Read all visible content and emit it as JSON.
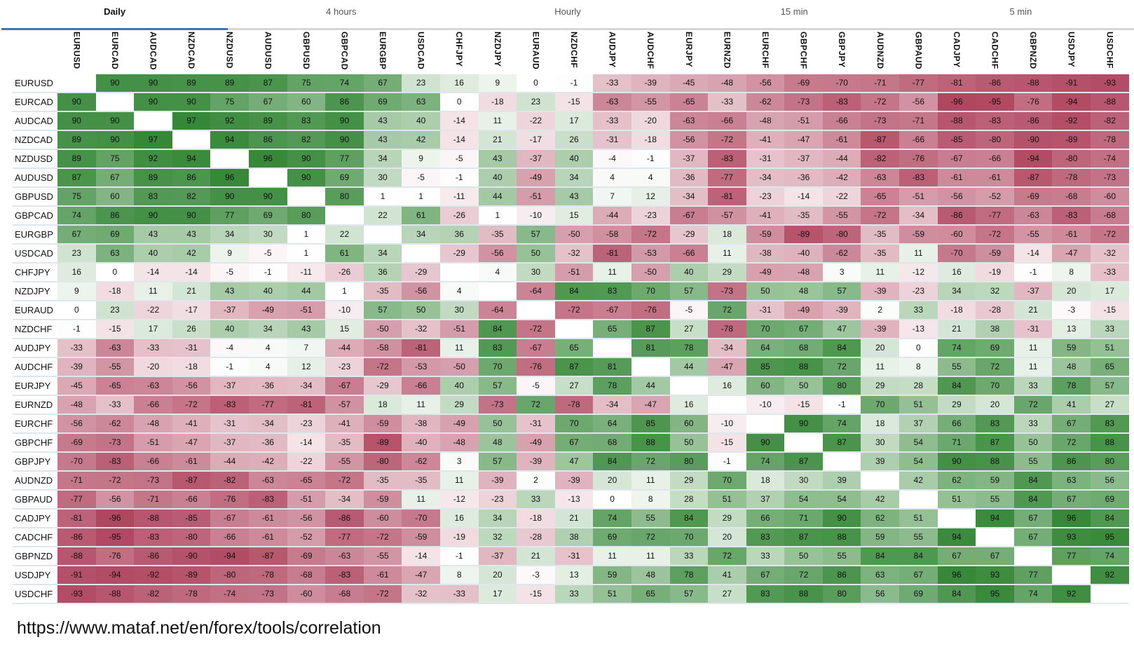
{
  "tabs": [
    {
      "label": "Daily",
      "active": true
    },
    {
      "label": "4 hours"
    },
    {
      "label": "Hourly"
    },
    {
      "label": "15 min"
    },
    {
      "label": "5 min"
    }
  ],
  "pairs": [
    "EURUSD",
    "EURCAD",
    "AUDCAD",
    "NZDCAD",
    "NZDUSD",
    "AUDUSD",
    "GBPUSD",
    "GBPCAD",
    "EURGBP",
    "USDCAD",
    "CHFJPY",
    "NZDJPY",
    "EURAUD",
    "NZDCHF",
    "AUDJPY",
    "AUDCHF",
    "EURJPY",
    "EURNZD",
    "EURCHF",
    "GBPCHF",
    "GBPJPY",
    "AUDNZD",
    "GBPAUD",
    "CADJPY",
    "CADCHF",
    "GBPNZD",
    "USDJPY",
    "USDCHF"
  ],
  "colors": {
    "positive": "#2f8431",
    "negative": "#ad3f5a",
    "neutral": "#ffffff"
  },
  "matrix": [
    [
      null,
      90,
      90,
      89,
      89,
      87,
      75,
      74,
      67,
      23,
      16,
      9,
      0,
      -1,
      -33,
      -39,
      -45,
      -48,
      -56,
      -69,
      -70,
      -71,
      -77,
      -81,
      -86,
      -88,
      -91,
      -93
    ],
    [
      90,
      null,
      90,
      90,
      75,
      67,
      60,
      86,
      69,
      63,
      0,
      -18,
      23,
      -15,
      -63,
      -55,
      -65,
      -33,
      -62,
      -73,
      -83,
      -72,
      -56,
      -96,
      -95,
      -76,
      -94,
      -88
    ],
    [
      90,
      90,
      null,
      97,
      92,
      89,
      83,
      90,
      43,
      40,
      -14,
      11,
      -22,
      17,
      -33,
      -20,
      -63,
      -66,
      -48,
      -51,
      -66,
      -73,
      -71,
      -88,
      -83,
      -86,
      -92,
      -82
    ],
    [
      89,
      90,
      97,
      null,
      94,
      86,
      82,
      90,
      43,
      42,
      -14,
      21,
      -17,
      26,
      -31,
      -18,
      -56,
      -72,
      -41,
      -47,
      -61,
      -87,
      -66,
      -85,
      -80,
      -90,
      -89,
      -78
    ],
    [
      89,
      75,
      92,
      94,
      null,
      96,
      90,
      77,
      34,
      9,
      -5,
      43,
      -37,
      40,
      -4,
      -1,
      -37,
      -83,
      -31,
      -37,
      -44,
      -82,
      -76,
      -67,
      -66,
      -94,
      -80,
      -74
    ],
    [
      87,
      67,
      89,
      86,
      96,
      null,
      90,
      69,
      30,
      -5,
      -1,
      40,
      -49,
      34,
      4,
      4,
      -36,
      -77,
      -34,
      -36,
      -42,
      -63,
      -83,
      -61,
      -61,
      -87,
      -78,
      -73
    ],
    [
      75,
      60,
      83,
      82,
      90,
      90,
      null,
      80,
      1,
      1,
      -11,
      44,
      -51,
      43,
      7,
      12,
      -34,
      -81,
      -23,
      -14,
      -22,
      -65,
      -51,
      -56,
      -52,
      -69,
      -68,
      -60
    ],
    [
      74,
      86,
      90,
      90,
      77,
      69,
      80,
      null,
      22,
      61,
      -26,
      1,
      -10,
      15,
      -44,
      -23,
      -67,
      -57,
      -41,
      -35,
      -55,
      -72,
      -34,
      -86,
      -77,
      -63,
      -83,
      -68
    ],
    [
      67,
      69,
      43,
      43,
      34,
      30,
      1,
      22,
      null,
      34,
      36,
      -35,
      57,
      -50,
      -58,
      -72,
      -29,
      18,
      -59,
      -89,
      -80,
      -35,
      -59,
      -60,
      -72,
      -55,
      -61,
      -72
    ],
    [
      23,
      63,
      40,
      42,
      9,
      -5,
      1,
      61,
      34,
      null,
      -29,
      -56,
      50,
      -32,
      -81,
      -53,
      -66,
      11,
      -38,
      -40,
      -62,
      -35,
      11,
      -70,
      -59,
      -14,
      -47,
      -32
    ],
    [
      16,
      0,
      -14,
      -14,
      -5,
      -1,
      -11,
      -26,
      36,
      -29,
      null,
      4,
      30,
      -51,
      11,
      -50,
      40,
      29,
      -49,
      -48,
      3,
      11,
      -12,
      16,
      -19,
      -1,
      8,
      -33
    ],
    [
      9,
      -18,
      11,
      21,
      43,
      40,
      44,
      1,
      -35,
      -56,
      4,
      null,
      -64,
      84,
      83,
      70,
      57,
      -73,
      50,
      48,
      57,
      -39,
      -23,
      34,
      32,
      -37,
      20,
      17
    ],
    [
      0,
      23,
      -22,
      -17,
      -37,
      -49,
      -51,
      -10,
      57,
      50,
      30,
      -64,
      null,
      -72,
      -67,
      -76,
      -5,
      72,
      -31,
      -49,
      -39,
      2,
      33,
      -18,
      -28,
      21,
      -3,
      -15
    ],
    [
      -1,
      -15,
      17,
      26,
      40,
      34,
      43,
      15,
      -50,
      -32,
      -51,
      84,
      -72,
      null,
      65,
      87,
      27,
      -78,
      70,
      67,
      47,
      -39,
      -13,
      21,
      38,
      -31,
      13,
      33
    ],
    [
      -33,
      -63,
      -33,
      -31,
      -4,
      4,
      7,
      -44,
      -58,
      -81,
      11,
      83,
      -67,
      65,
      null,
      81,
      78,
      -34,
      64,
      68,
      84,
      20,
      0,
      74,
      69,
      11,
      59,
      51
    ],
    [
      -39,
      -55,
      -20,
      -18,
      -1,
      4,
      12,
      -23,
      -72,
      -53,
      -50,
      70,
      -76,
      87,
      81,
      null,
      44,
      -47,
      85,
      88,
      72,
      11,
      8,
      55,
      72,
      11,
      48,
      65
    ],
    [
      -45,
      -65,
      -63,
      -56,
      -37,
      -36,
      -34,
      -67,
      -29,
      -66,
      40,
      57,
      -5,
      27,
      78,
      44,
      null,
      16,
      60,
      50,
      80,
      29,
      28,
      84,
      70,
      33,
      78,
      57
    ],
    [
      -48,
      -33,
      -66,
      -72,
      -83,
      -77,
      -81,
      -57,
      18,
      11,
      29,
      -73,
      72,
      -78,
      -34,
      -47,
      16,
      null,
      -10,
      -15,
      -1,
      70,
      51,
      29,
      20,
      72,
      41,
      27
    ],
    [
      -56,
      -62,
      -48,
      -41,
      -31,
      -34,
      -23,
      -41,
      -59,
      -38,
      -49,
      50,
      -31,
      70,
      64,
      85,
      60,
      -10,
      null,
      90,
      74,
      18,
      37,
      66,
      83,
      33,
      67,
      83
    ],
    [
      -69,
      -73,
      -51,
      -47,
      -37,
      -36,
      -14,
      -35,
      -89,
      -40,
      -48,
      48,
      -49,
      67,
      68,
      88,
      50,
      -15,
      90,
      null,
      87,
      30,
      54,
      71,
      87,
      50,
      72,
      88
    ],
    [
      -70,
      -83,
      -66,
      -61,
      -44,
      -42,
      -22,
      -55,
      -80,
      -62,
      3,
      57,
      -39,
      47,
      84,
      72,
      80,
      -1,
      74,
      87,
      null,
      39,
      54,
      90,
      88,
      55,
      86,
      80
    ],
    [
      -71,
      -72,
      -73,
      -87,
      -82,
      -63,
      -65,
      -72,
      -35,
      -35,
      11,
      -39,
      2,
      -39,
      20,
      11,
      29,
      70,
      18,
      30,
      39,
      null,
      42,
      62,
      59,
      84,
      63,
      56
    ],
    [
      -77,
      -56,
      -71,
      -66,
      -76,
      -83,
      -51,
      -34,
      -59,
      11,
      -12,
      -23,
      33,
      -13,
      0,
      8,
      28,
      51,
      37,
      54,
      54,
      42,
      null,
      51,
      55,
      84,
      67,
      69
    ],
    [
      -81,
      -96,
      -88,
      -85,
      -67,
      -61,
      -56,
      -86,
      -60,
      -70,
      16,
      34,
      -18,
      21,
      74,
      55,
      84,
      29,
      66,
      71,
      90,
      62,
      51,
      null,
      94,
      67,
      96,
      84
    ],
    [
      -86,
      -95,
      -83,
      -80,
      -66,
      -61,
      -52,
      -77,
      -72,
      -59,
      -19,
      32,
      -28,
      38,
      69,
      72,
      70,
      20,
      83,
      87,
      88,
      59,
      55,
      94,
      null,
      67,
      93,
      95
    ],
    [
      -88,
      -76,
      -86,
      -90,
      -94,
      -87,
      -69,
      -63,
      -55,
      -14,
      -1,
      -37,
      21,
      -31,
      11,
      11,
      33,
      72,
      33,
      50,
      55,
      84,
      84,
      67,
      67,
      null,
      77,
      74
    ],
    [
      -91,
      -94,
      -92,
      -89,
      -80,
      -78,
      -68,
      -83,
      -61,
      -47,
      8,
      20,
      -3,
      13,
      59,
      48,
      78,
      41,
      67,
      72,
      86,
      63,
      67,
      96,
      93,
      77,
      null,
      92
    ],
    [
      -93,
      -88,
      -82,
      -78,
      -74,
      -73,
      -60,
      -68,
      -72,
      -32,
      -33,
      17,
      -15,
      33,
      51,
      65,
      57,
      27,
      83,
      88,
      80,
      56,
      69,
      84,
      95,
      74,
      92,
      null
    ]
  ],
  "footer": {
    "url": "https://www.mataf.net/en/forex/tools/correlation"
  }
}
